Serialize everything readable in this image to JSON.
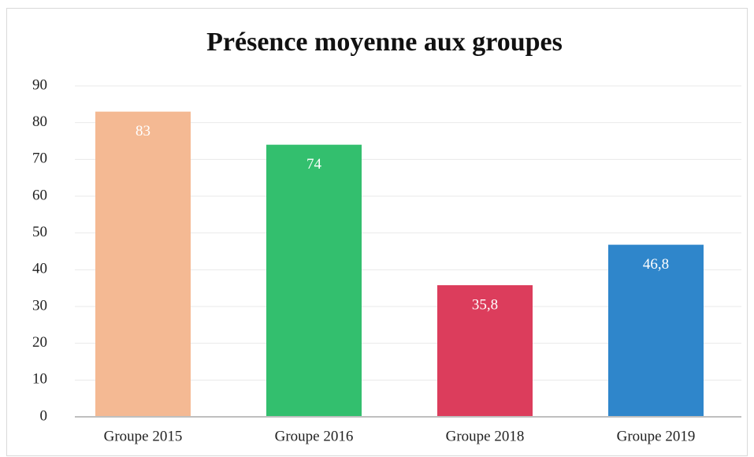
{
  "chart_data": {
    "type": "bar",
    "title": "Présence moyenne aux groupes",
    "categories": [
      "Groupe 2015",
      "Groupe 2016",
      "Groupe 2018",
      "Groupe 2019"
    ],
    "values": [
      83,
      74,
      35.8,
      46.8
    ],
    "value_labels": [
      "83",
      "74",
      "35,8",
      "46,8"
    ],
    "colors": [
      "#f4b993",
      "#33bf6e",
      "#dc3d5c",
      "#2f86cb"
    ],
    "ylim": [
      0,
      90
    ],
    "yticks": [
      0,
      10,
      20,
      30,
      40,
      50,
      60,
      70,
      80,
      90
    ],
    "grid": true
  }
}
